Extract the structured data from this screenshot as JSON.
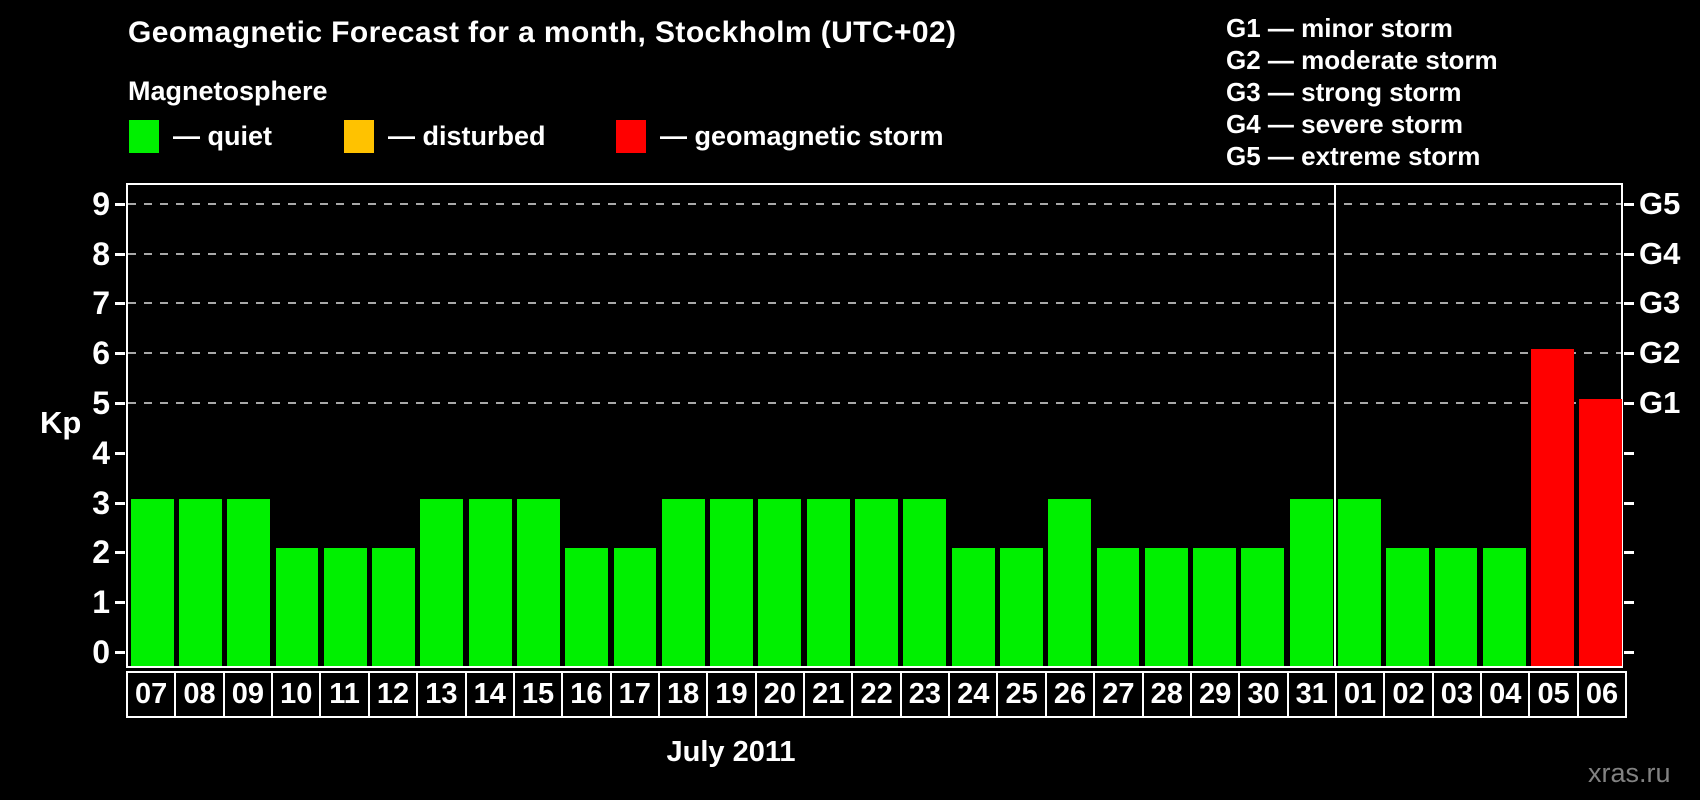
{
  "header": {
    "title": "Geomagnetic Forecast for a month, Stockholm (UTC+02)",
    "subtitle": "Magnetosphere"
  },
  "legend": {
    "items": [
      {
        "name": "quiet",
        "label": "— quiet",
        "color": "#00f000"
      },
      {
        "name": "disturbed",
        "label": "— disturbed",
        "color": "#ffc200"
      },
      {
        "name": "storm",
        "label": "— geomagnetic storm",
        "color": "#ff0000"
      }
    ]
  },
  "storm_scale_legend": {
    "items": [
      "G1 — minor storm",
      "G2 — moderate storm",
      "G3 — strong storm",
      "G4 — severe storm",
      "G5 — extreme storm"
    ]
  },
  "footer": {
    "month_label": "July 2011",
    "watermark": "xras.ru"
  },
  "chart_data": {
    "type": "bar",
    "title": "Geomagnetic Forecast for a month, Stockholm (UTC+02)",
    "xlabel": "July 2011",
    "ylabel": "Kp",
    "ylim": [
      0,
      9
    ],
    "yticks": [
      0,
      1,
      2,
      3,
      4,
      5,
      6,
      7,
      8,
      9
    ],
    "gridline_levels": [
      5,
      6,
      7,
      8,
      9
    ],
    "grid": "dashed, only at storm levels 5-9",
    "legend_position": "top",
    "right_axis_labels": [
      {
        "level": 5,
        "label": "G1"
      },
      {
        "level": 6,
        "label": "G2"
      },
      {
        "level": 7,
        "label": "G3"
      },
      {
        "level": 8,
        "label": "G4"
      },
      {
        "level": 9,
        "label": "G5"
      }
    ],
    "month_separator_after_index": 24,
    "bar_colors": {
      "quiet": "#00f000",
      "disturbed": "#ffc200",
      "storm": "#ff0000"
    },
    "categories": [
      "07",
      "08",
      "09",
      "10",
      "11",
      "12",
      "13",
      "14",
      "15",
      "16",
      "17",
      "18",
      "19",
      "20",
      "21",
      "22",
      "23",
      "24",
      "25",
      "26",
      "27",
      "28",
      "29",
      "30",
      "31",
      "01",
      "02",
      "03",
      "04",
      "05",
      "06"
    ],
    "values": [
      3,
      3,
      3,
      2,
      2,
      2,
      3,
      3,
      3,
      2,
      2,
      3,
      3,
      3,
      3,
      3,
      3,
      2,
      2,
      3,
      2,
      2,
      2,
      2,
      3,
      3,
      2,
      2,
      2,
      6,
      5
    ],
    "statuses": [
      "quiet",
      "quiet",
      "quiet",
      "quiet",
      "quiet",
      "quiet",
      "quiet",
      "quiet",
      "quiet",
      "quiet",
      "quiet",
      "quiet",
      "quiet",
      "quiet",
      "quiet",
      "quiet",
      "quiet",
      "quiet",
      "quiet",
      "quiet",
      "quiet",
      "quiet",
      "quiet",
      "quiet",
      "quiet",
      "quiet",
      "quiet",
      "quiet",
      "quiet",
      "storm",
      "storm"
    ]
  }
}
